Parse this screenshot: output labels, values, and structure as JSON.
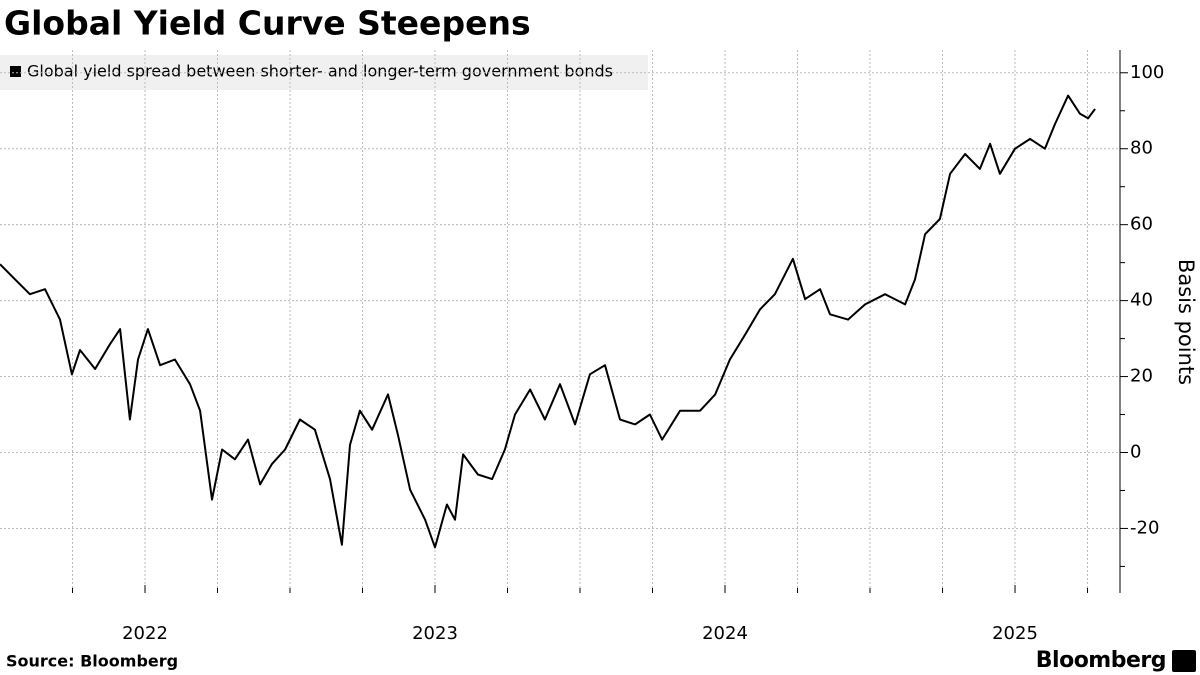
{
  "chart_data": {
    "type": "line",
    "title": "Global Yield Curve Steepens",
    "y_label": "Basis points",
    "source": "Source: Bloomberg",
    "brand": "Bloomberg",
    "x": [
      2021.5,
      2021.552,
      2021.603,
      2021.655,
      2021.707,
      2021.748,
      2021.776,
      2021.828,
      2021.879,
      2021.914,
      2021.948,
      2021.976,
      2022.01,
      2022.052,
      2022.103,
      2022.155,
      2022.19,
      2022.231,
      2022.266,
      2022.31,
      2022.355,
      2022.397,
      2022.438,
      2022.483,
      2022.534,
      2022.586,
      2022.638,
      2022.679,
      2022.707,
      2022.741,
      2022.783,
      2022.838,
      2022.872,
      2022.914,
      2022.966,
      2023.0,
      2023.041,
      2023.069,
      2023.097,
      2023.148,
      2023.197,
      2023.241,
      2023.276,
      2023.328,
      2023.379,
      2023.431,
      2023.483,
      2023.534,
      2023.586,
      2023.638,
      2023.69,
      2023.741,
      2023.783,
      2023.845,
      2023.914,
      2023.966,
      2024.017,
      2024.069,
      2024.121,
      2024.172,
      2024.234,
      2024.276,
      2024.328,
      2024.362,
      2024.424,
      2024.483,
      2024.552,
      2024.621,
      2024.655,
      2024.69,
      2024.741,
      2024.776,
      2024.828,
      2024.879,
      2024.914,
      2024.948,
      2025.0,
      2025.052,
      2025.103,
      2025.138,
      2025.183,
      2025.224,
      2025.252,
      2025.276
    ],
    "series": [
      {
        "name": "Global yield spread between shorter- and longer-term government bonds",
        "color": "#000000",
        "values": [
          49.6,
          45.6,
          41.7,
          43,
          35,
          20.6,
          27,
          22,
          28.5,
          32.5,
          8.7,
          24.5,
          32.5,
          23,
          24.5,
          18,
          11,
          -12.4,
          0.8,
          -1.8,
          3.4,
          -8.4,
          -3,
          0.8,
          8.7,
          6,
          -7,
          -24.3,
          2,
          11,
          6,
          15.3,
          4.7,
          -9.8,
          -17.7,
          -25,
          -13.7,
          -17.7,
          -0.5,
          -5.8,
          -7,
          0.8,
          10,
          16.6,
          8.7,
          18,
          7.4,
          20.6,
          23,
          8.7,
          7.4,
          10,
          3.4,
          11,
          11,
          15.3,
          24.5,
          31,
          37.7,
          41.7,
          51,
          40.4,
          43,
          36.4,
          35,
          39,
          41.7,
          39,
          45.6,
          57.5,
          61.5,
          73.4,
          78.6,
          74.7,
          81.3,
          73.4,
          80,
          82.6,
          80,
          86.5,
          94,
          89.2,
          88,
          90.5
        ]
      }
    ],
    "xlim": [
      2021.5,
      2025.362
    ],
    "xticks": [
      2022,
      2023,
      2024,
      2025
    ],
    "xminorticks": [
      2021.75,
      2022.25,
      2022.5,
      2022.75,
      2023.25,
      2023.5,
      2023.75,
      2024.25,
      2024.5,
      2024.75,
      2025.25
    ],
    "ylim": [
      -37,
      106
    ],
    "yticks": [
      -20,
      0,
      20,
      40,
      60,
      80,
      100
    ],
    "yminorticks": [
      -30,
      -10,
      10,
      30,
      50,
      70,
      90
    ],
    "grid": true
  }
}
